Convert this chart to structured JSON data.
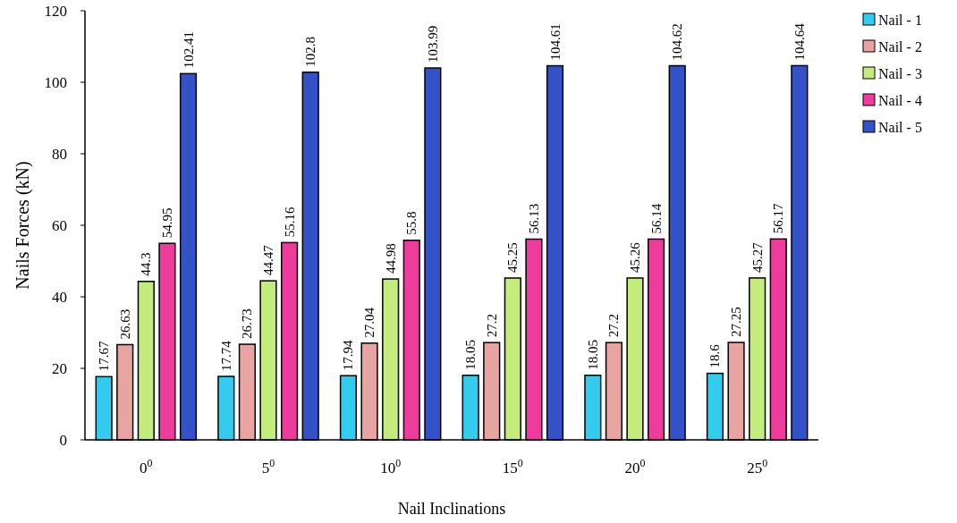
{
  "chart_data": {
    "type": "bar",
    "xlabel": "Nail Inclinations",
    "ylabel": "Nails Forces (kN)",
    "categories": [
      "0$^{0}$",
      "5$^{0}$",
      "10$^{0}$",
      "15$^{0}$",
      "20$^{0}$",
      "25$^{0}$"
    ],
    "series": [
      {
        "name": "Nail - 1",
        "color": "#33ccee",
        "values": [
          17.67,
          17.74,
          17.94,
          18.05,
          18.05,
          18.6
        ]
      },
      {
        "name": "Nail - 2",
        "color": "#e8a4a0",
        "values": [
          26.63,
          26.73,
          27.04,
          27.2,
          27.2,
          27.25
        ]
      },
      {
        "name": "Nail - 3",
        "color": "#c4ec7c",
        "values": [
          44.3,
          44.47,
          44.98,
          45.25,
          45.26,
          45.27
        ]
      },
      {
        "name": "Nail - 4",
        "color": "#ee3c9c",
        "values": [
          54.95,
          55.16,
          55.8,
          56.13,
          56.14,
          56.17
        ]
      },
      {
        "name": "Nail - 5",
        "color": "#3452c8",
        "values": [
          102.41,
          102.8,
          103.99,
          104.61,
          104.62,
          104.64
        ]
      }
    ],
    "ylim": [
      0,
      120
    ],
    "yticks": [
      0,
      20,
      40,
      60,
      80,
      100,
      120
    ],
    "grid": false,
    "legend": "right",
    "data_labels": true
  }
}
